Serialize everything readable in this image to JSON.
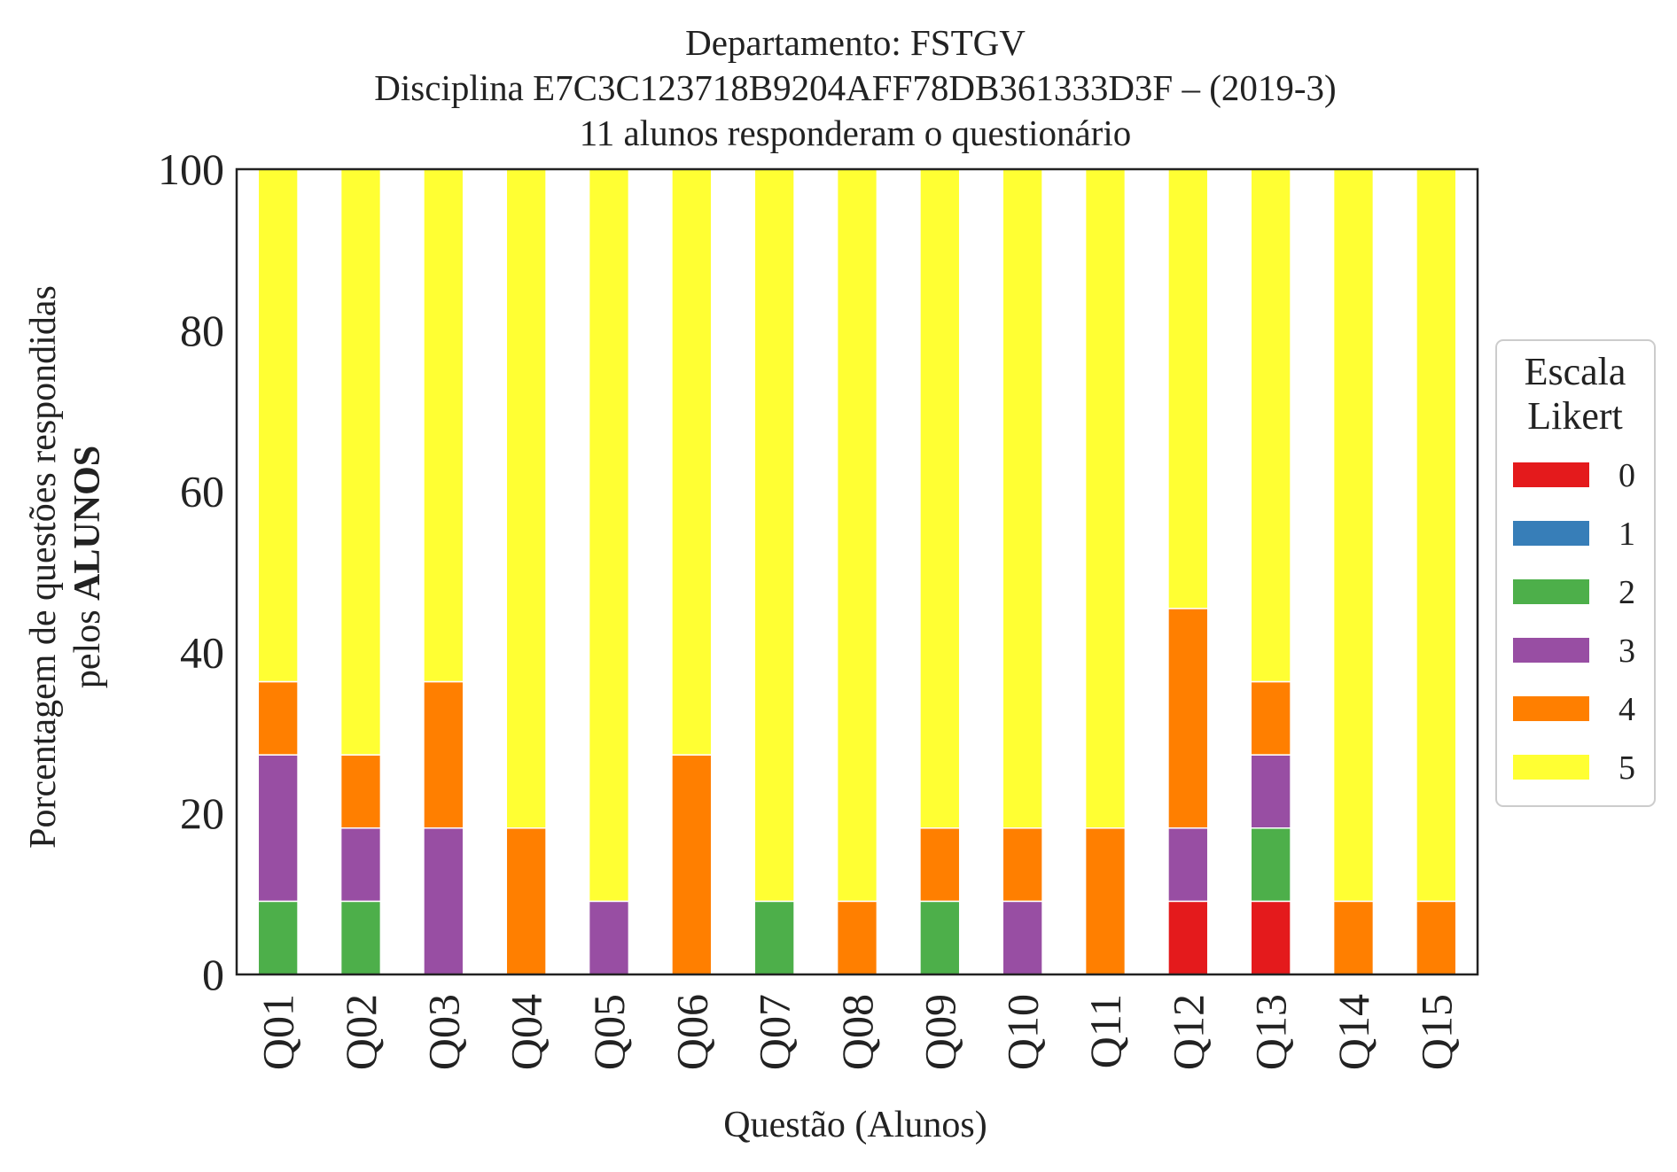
{
  "chart_data": {
    "type": "bar",
    "stacked": true,
    "title": [
      "Departamento: FSTGV",
      "Disciplina E7C3C123718B9204AFF78DB361333D3F – (2019-3)",
      "11 alunos responderam o questionário"
    ],
    "xlabel": "Questão (Alunos)",
    "ylabel_line1": "Porcentagem de questões respondidas",
    "ylabel_line2_prefix": "pelos ",
    "ylabel_line2_bold": "ALUNOS",
    "ylim": [
      0,
      100
    ],
    "yticks": [
      "0",
      "20",
      "40",
      "60",
      "80",
      "100"
    ],
    "categories": [
      "Q01",
      "Q02",
      "Q03",
      "Q04",
      "Q05",
      "Q06",
      "Q07",
      "Q08",
      "Q09",
      "Q10",
      "Q11",
      "Q12",
      "Q13",
      "Q14",
      "Q15"
    ],
    "legend_title": [
      "Escala",
      "Likert"
    ],
    "legend_position": "center-right, outside plot",
    "grid": false,
    "series": [
      {
        "name": "0",
        "color": "#e41a1c",
        "values": [
          0,
          0,
          0,
          0,
          0,
          0,
          0,
          0,
          0,
          0,
          0,
          9.09,
          9.09,
          0,
          0
        ]
      },
      {
        "name": "1",
        "color": "#377eb8",
        "values": [
          0,
          0,
          0,
          0,
          0,
          0,
          0,
          0,
          0,
          0,
          0,
          0,
          0,
          0,
          0
        ]
      },
      {
        "name": "2",
        "color": "#4daf4a",
        "values": [
          9.09,
          9.09,
          0,
          0,
          0,
          0,
          9.09,
          0,
          9.09,
          0,
          0,
          0,
          9.09,
          0,
          0
        ]
      },
      {
        "name": "3",
        "color": "#984ea3",
        "values": [
          18.18,
          9.09,
          18.18,
          0,
          9.09,
          0,
          0,
          0,
          0,
          9.09,
          0,
          9.09,
          9.09,
          0,
          0
        ]
      },
      {
        "name": "4",
        "color": "#ff7f00",
        "values": [
          9.09,
          9.09,
          18.18,
          18.18,
          0,
          27.27,
          0,
          9.09,
          9.09,
          9.09,
          18.18,
          27.27,
          9.09,
          9.09,
          9.09
        ]
      },
      {
        "name": "5",
        "color": "#ffff33",
        "values": [
          63.64,
          72.73,
          63.64,
          81.82,
          90.91,
          72.73,
          90.91,
          90.91,
          81.82,
          81.82,
          81.82,
          54.55,
          63.64,
          90.91,
          90.91
        ]
      }
    ]
  }
}
